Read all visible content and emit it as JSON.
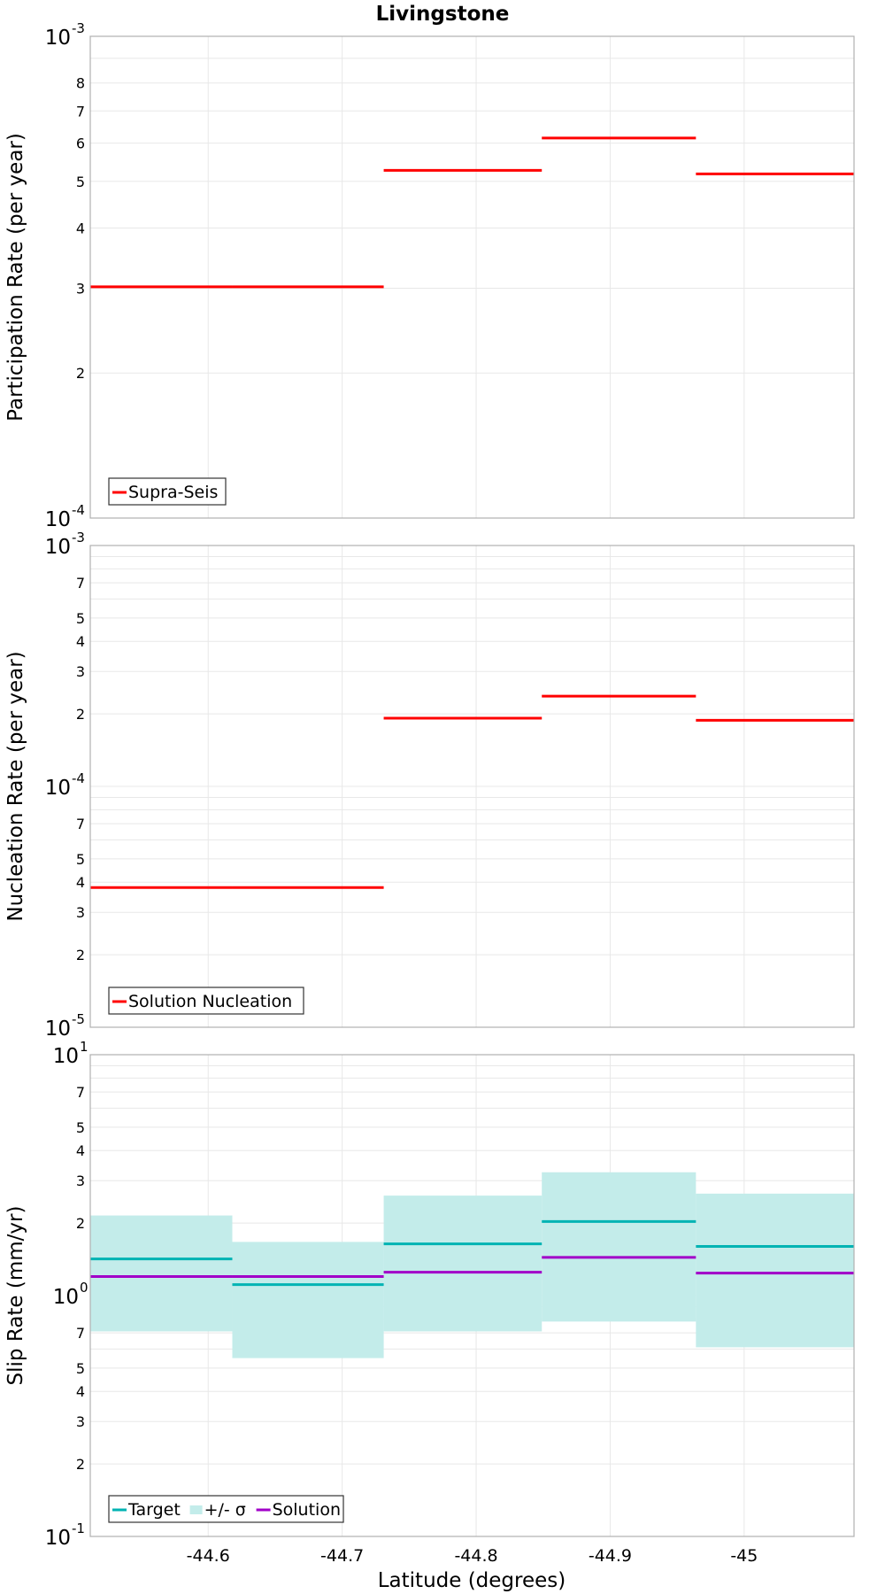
{
  "title": "Livingstone",
  "xlabel": "Latitude (degrees)",
  "x_ticks": [
    {
      "value": -44.6,
      "label": "-44.6"
    },
    {
      "value": -44.7,
      "label": "-44.7"
    },
    {
      "value": -44.8,
      "label": "-44.8"
    },
    {
      "value": -44.9,
      "label": "-44.9"
    },
    {
      "value": -45.0,
      "label": "-45"
    }
  ],
  "colors": {
    "red": "#ff0000",
    "teal": "#00b3b3",
    "band": "#c3ecea",
    "purple": "#a100c8",
    "grid": "#e8e8e8",
    "frame": "#b0b0b0"
  },
  "chart_data": [
    {
      "type": "line",
      "style": "step",
      "ylabel": "Participation Rate (per year)",
      "xlim": [
        -44.512,
        -45.082
      ],
      "ylim": [
        0.0001,
        0.001
      ],
      "yscale": "log",
      "grid": true,
      "legend_position": "bottom-left",
      "y_major_ticks": [
        {
          "value": 0.001,
          "base": "10",
          "exp": "-3"
        },
        {
          "value": 0.0001,
          "base": "10",
          "exp": "-4"
        }
      ],
      "y_minor_ticks": [
        {
          "value": 0.0008,
          "label": "8"
        },
        {
          "value": 0.0007,
          "label": "7"
        },
        {
          "value": 0.0006,
          "label": "6"
        },
        {
          "value": 0.0005,
          "label": "5"
        },
        {
          "value": 0.0004,
          "label": "4"
        },
        {
          "value": 0.0003,
          "label": "3"
        },
        {
          "value": 0.0002,
          "label": "2"
        }
      ],
      "series": [
        {
          "name": "Supra-Seis",
          "color": "#ff0000",
          "kind": "step",
          "segments": [
            {
              "x0": -44.512,
              "x1": -44.618,
              "y": 0.000302
            },
            {
              "x0": -44.618,
              "x1": -44.731,
              "y": 0.000302
            },
            {
              "x0": -44.731,
              "x1": -44.849,
              "y": 0.000527
            },
            {
              "x0": -44.849,
              "x1": -44.964,
              "y": 0.000615
            },
            {
              "x0": -44.964,
              "x1": -45.082,
              "y": 0.000518
            }
          ]
        }
      ]
    },
    {
      "type": "line",
      "style": "step",
      "ylabel": "Nucleation Rate (per year)",
      "xlim": [
        -44.512,
        -45.082
      ],
      "ylim": [
        1e-05,
        0.001
      ],
      "yscale": "log",
      "grid": true,
      "legend_position": "bottom-left",
      "y_major_ticks": [
        {
          "value": 0.001,
          "base": "10",
          "exp": "-3"
        },
        {
          "value": 0.0001,
          "base": "10",
          "exp": "-4"
        },
        {
          "value": 1e-05,
          "base": "10",
          "exp": "-5"
        }
      ],
      "y_minor_ticks": [
        {
          "value": 0.0007,
          "label": "7"
        },
        {
          "value": 0.0005,
          "label": "5"
        },
        {
          "value": 0.0004,
          "label": "4"
        },
        {
          "value": 0.0003,
          "label": "3"
        },
        {
          "value": 0.0002,
          "label": "2"
        },
        {
          "value": 7e-05,
          "label": "7"
        },
        {
          "value": 5e-05,
          "label": "5"
        },
        {
          "value": 4e-05,
          "label": "4"
        },
        {
          "value": 3e-05,
          "label": "3"
        },
        {
          "value": 2e-05,
          "label": "2"
        }
      ],
      "series": [
        {
          "name": "Solution Nucleation",
          "color": "#ff0000",
          "kind": "step",
          "segments": [
            {
              "x0": -44.512,
              "x1": -44.618,
              "y": 3.8e-05
            },
            {
              "x0": -44.618,
              "x1": -44.731,
              "y": 3.8e-05
            },
            {
              "x0": -44.731,
              "x1": -44.849,
              "y": 0.000192
            },
            {
              "x0": -44.849,
              "x1": -44.964,
              "y": 0.000237
            },
            {
              "x0": -44.964,
              "x1": -45.082,
              "y": 0.000188
            }
          ]
        }
      ]
    },
    {
      "type": "line",
      "style": "step",
      "ylabel": "Slip Rate (mm/yr)",
      "xlim": [
        -44.512,
        -45.082
      ],
      "ylim": [
        0.1,
        10
      ],
      "yscale": "log",
      "grid": true,
      "legend_position": "bottom-left",
      "y_major_ticks": [
        {
          "value": 10,
          "base": "10",
          "exp": "1"
        },
        {
          "value": 1,
          "base": "10",
          "exp": "0"
        },
        {
          "value": 0.1,
          "base": "10",
          "exp": "-1"
        }
      ],
      "y_minor_ticks": [
        {
          "value": 7,
          "label": "7"
        },
        {
          "value": 5,
          "label": "5"
        },
        {
          "value": 4,
          "label": "4"
        },
        {
          "value": 3,
          "label": "3"
        },
        {
          "value": 2,
          "label": "2"
        },
        {
          "value": 0.7,
          "label": "7"
        },
        {
          "value": 0.5,
          "label": "5"
        },
        {
          "value": 0.4,
          "label": "4"
        },
        {
          "value": 0.3,
          "label": "3"
        },
        {
          "value": 0.2,
          "label": "2"
        }
      ],
      "series": [
        {
          "name": "Target",
          "color": "#00b3b3",
          "kind": "step",
          "segments": [
            {
              "x0": -44.512,
              "x1": -44.618,
              "y": 1.42
            },
            {
              "x0": -44.618,
              "x1": -44.731,
              "y": 1.11
            },
            {
              "x0": -44.731,
              "x1": -44.849,
              "y": 1.64
            },
            {
              "x0": -44.849,
              "x1": -44.964,
              "y": 2.03
            },
            {
              "x0": -44.964,
              "x1": -45.082,
              "y": 1.6
            }
          ]
        },
        {
          "name": "+/- σ",
          "color": "#c3ecea",
          "kind": "band",
          "segments": [
            {
              "x0": -44.512,
              "x1": -44.618,
              "low": 0.71,
              "high": 2.15
            },
            {
              "x0": -44.618,
              "x1": -44.731,
              "low": 0.55,
              "high": 1.67
            },
            {
              "x0": -44.731,
              "x1": -44.849,
              "low": 0.71,
              "high": 2.6
            },
            {
              "x0": -44.849,
              "x1": -44.964,
              "low": 0.78,
              "high": 3.25
            },
            {
              "x0": -44.964,
              "x1": -45.082,
              "low": 0.61,
              "high": 2.65
            }
          ]
        },
        {
          "name": "Solution",
          "color": "#a100c8",
          "kind": "step",
          "segments": [
            {
              "x0": -44.512,
              "x1": -44.618,
              "y": 1.2
            },
            {
              "x0": -44.618,
              "x1": -44.731,
              "y": 1.2
            },
            {
              "x0": -44.731,
              "x1": -44.849,
              "y": 1.25
            },
            {
              "x0": -44.849,
              "x1": -44.964,
              "y": 1.44
            },
            {
              "x0": -44.964,
              "x1": -45.082,
              "y": 1.24
            }
          ]
        }
      ]
    }
  ]
}
